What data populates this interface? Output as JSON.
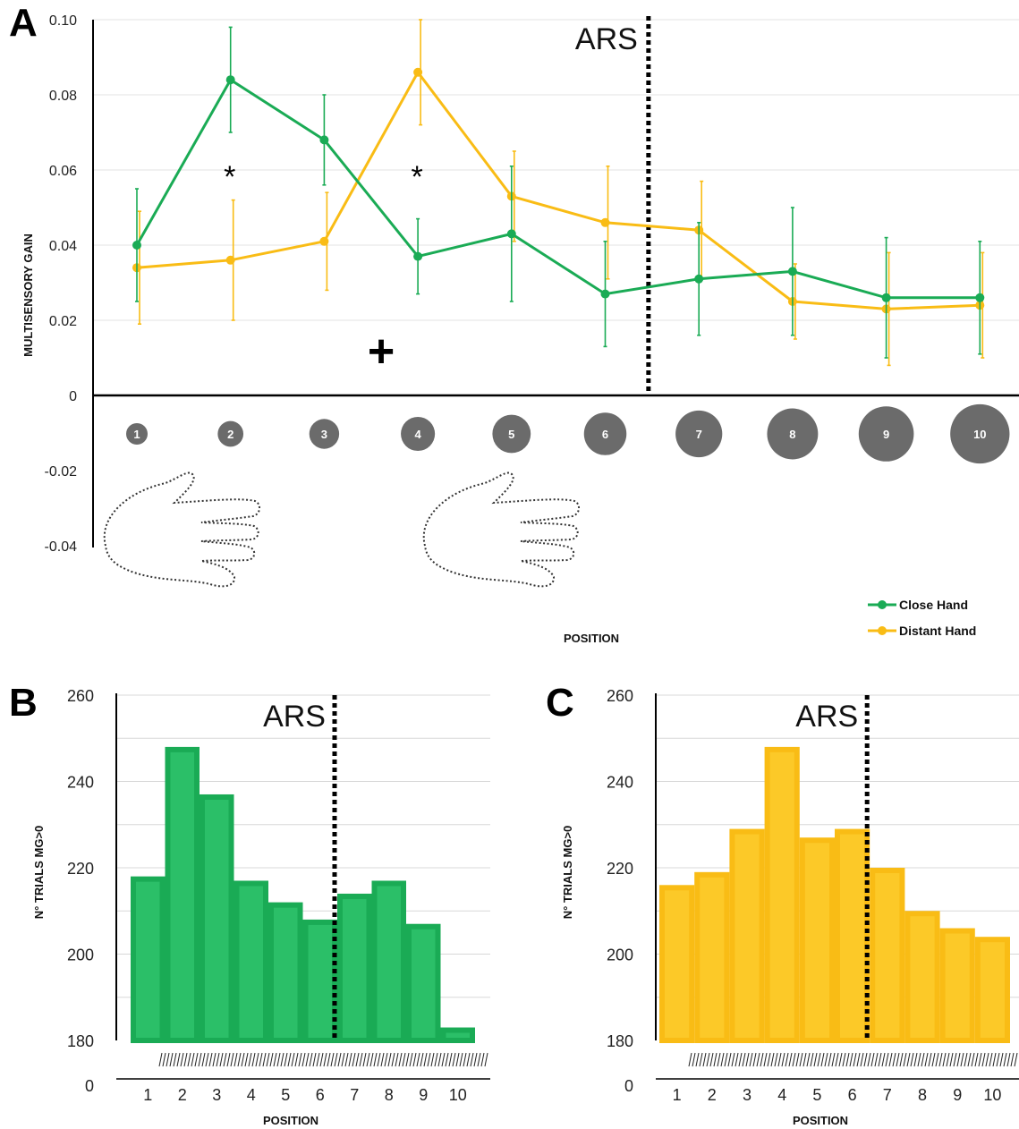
{
  "panels": {
    "a": "A",
    "b": "B",
    "c": "C"
  },
  "annotations": {
    "ars": "ARS",
    "significance": "*",
    "fixation": "+"
  },
  "colors": {
    "close_hand": "#1aab55",
    "distant_hand": "#f9bc15",
    "close_hand_bar": "#2bbf68",
    "distant_hand_bar": "#fcc928",
    "circles": "#6b6b6b"
  },
  "chart_data": [
    {
      "type": "line",
      "panel": "A",
      "xlabel": "POSITION",
      "ylabel": "MULTISENSORY GAIN",
      "x": [
        1,
        2,
        3,
        4,
        5,
        6,
        7,
        8,
        9,
        10
      ],
      "ylim": [
        -0.04,
        0.1
      ],
      "yticks": [
        "0.10",
        "0.08",
        "0.06",
        "0.04",
        "0.02",
        "0",
        "-0.02",
        "-0.04"
      ],
      "series": [
        {
          "name": "Close Hand",
          "values": [
            0.04,
            0.084,
            0.068,
            0.037,
            0.043,
            0.027,
            0.031,
            0.033,
            0.026,
            0.026
          ],
          "errors": [
            0.015,
            0.014,
            0.012,
            0.01,
            0.018,
            0.014,
            0.015,
            0.017,
            0.016,
            0.015
          ]
        },
        {
          "name": "Distant Hand",
          "values": [
            0.034,
            0.036,
            0.041,
            0.086,
            0.053,
            0.046,
            0.044,
            0.025,
            0.023,
            0.024
          ],
          "errors": [
            0.015,
            0.016,
            0.013,
            0.014,
            0.012,
            0.015,
            0.013,
            0.01,
            0.015,
            0.014
          ]
        }
      ],
      "significant_positions": [
        2,
        4
      ],
      "ars_between": [
        6,
        7
      ],
      "grid": true,
      "legend_position": "bottom-right"
    },
    {
      "type": "bar",
      "panel": "B",
      "series_name": "Close Hand",
      "xlabel": "POSITION",
      "ylabel": "N° TRIALS MG>0",
      "categories": [
        "1",
        "2",
        "3",
        "4",
        "5",
        "6",
        "7",
        "8",
        "9",
        "10"
      ],
      "values": [
        218,
        248,
        237,
        217,
        212,
        208,
        214,
        217,
        207,
        183
      ],
      "ylim": [
        180,
        260
      ],
      "yticks": [
        "260",
        "240",
        "220",
        "200",
        "180",
        "0"
      ],
      "axis_break": true,
      "ars_between": [
        6,
        7
      ]
    },
    {
      "type": "bar",
      "panel": "C",
      "series_name": "Distant Hand",
      "xlabel": "POSITION",
      "ylabel": "N° TRIALS MG>0",
      "categories": [
        "1",
        "2",
        "3",
        "4",
        "5",
        "6",
        "7",
        "8",
        "9",
        "10"
      ],
      "values": [
        216,
        219,
        229,
        248,
        227,
        229,
        220,
        210,
        206,
        204
      ],
      "ylim": [
        180,
        260
      ],
      "yticks": [
        "260",
        "240",
        "220",
        "200",
        "180",
        "0"
      ],
      "axis_break": true,
      "ars_between": [
        6,
        7
      ]
    }
  ]
}
